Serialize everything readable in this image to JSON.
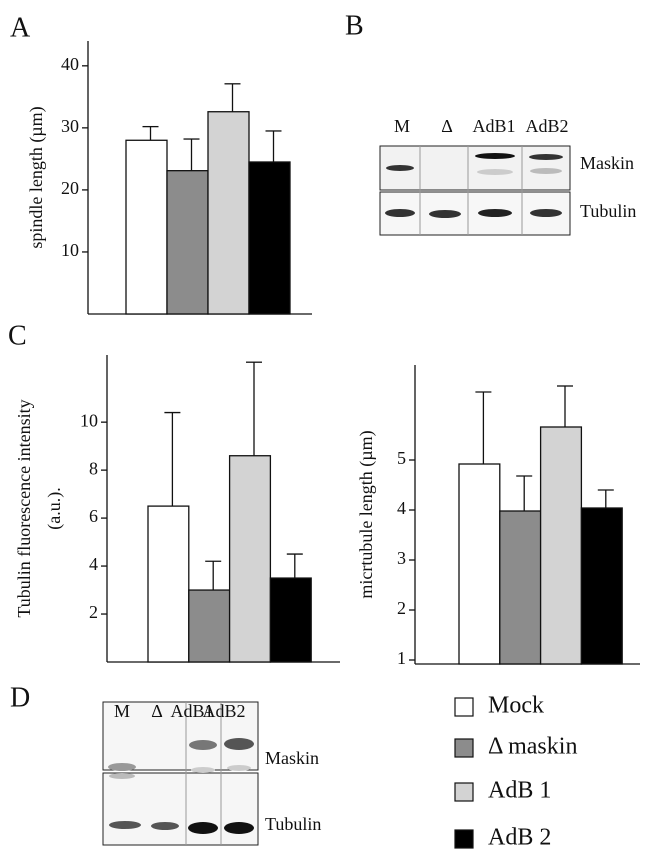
{
  "panels": {
    "a": "A",
    "b": "B",
    "c": "C",
    "d": "D"
  },
  "legend": {
    "items": [
      {
        "name": "Mock",
        "color": "#ffffff"
      },
      {
        "name": "Δ maskin",
        "color": "#8c8c8c"
      },
      {
        "name": "AdB 1",
        "color": "#d3d3d3"
      },
      {
        "name": "AdB 2",
        "color": "#000000"
      }
    ]
  },
  "chart_data": [
    {
      "type": "bar",
      "y_label": "spindle length (µm)",
      "values": [
        28,
        23.1,
        32.6,
        24.5
      ],
      "errors": [
        2.2,
        5.1,
        4.5,
        5
      ],
      "ylim": [
        0,
        44
      ],
      "yticks": [
        10,
        20,
        30,
        40
      ]
    },
    {
      "type": "bar",
      "y_label": "Tubulin fluorescence intensity",
      "y_label_2": "(a.u.).",
      "values": [
        6.5,
        3,
        8.6,
        3.5
      ],
      "errors": [
        3.9,
        1.2,
        3.9,
        1
      ],
      "ylim": [
        0,
        12.8
      ],
      "yticks": [
        2,
        4,
        6,
        8,
        10
      ]
    },
    {
      "type": "bar",
      "y_label": "micrtubule length (µm)",
      "values": [
        4.92,
        3.98,
        5.66,
        4.04
      ],
      "errors": [
        1.44,
        0.7,
        0.82,
        0.36
      ],
      "ylim": [
        0.92,
        6.9
      ],
      "yticks": [
        1,
        2,
        3,
        4,
        5
      ]
    }
  ],
  "blot_b": {
    "lanes": [
      "M",
      "Δ",
      "AdB1",
      "AdB2"
    ],
    "rows": [
      "Maskin",
      "Tubulin"
    ]
  },
  "blot_d": {
    "lanes": [
      "M",
      "Δ",
      "AdB1",
      "AdB2"
    ],
    "rows": [
      "Maskin",
      "Tubulin"
    ]
  }
}
